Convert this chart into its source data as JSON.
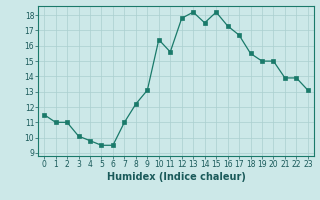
{
  "x": [
    0,
    1,
    2,
    3,
    4,
    5,
    6,
    7,
    8,
    9,
    10,
    11,
    12,
    13,
    14,
    15,
    16,
    17,
    18,
    19,
    20,
    21,
    22,
    23
  ],
  "y": [
    11.5,
    11.0,
    11.0,
    10.1,
    9.8,
    9.5,
    9.5,
    11.0,
    12.2,
    13.1,
    16.4,
    15.6,
    17.8,
    18.2,
    17.5,
    18.2,
    17.3,
    16.7,
    15.5,
    15.0,
    15.0,
    13.9,
    13.9,
    13.1
  ],
  "line_color": "#1a7a6a",
  "marker_color": "#1a7a6a",
  "bg_color": "#cce8e8",
  "grid_color": "#aacfcf",
  "xlabel": "Humidex (Indice chaleur)",
  "ylim": [
    8.8,
    18.6
  ],
  "xlim": [
    -0.5,
    23.5
  ],
  "yticks": [
    9,
    10,
    11,
    12,
    13,
    14,
    15,
    16,
    17,
    18
  ],
  "xticks": [
    0,
    1,
    2,
    3,
    4,
    5,
    6,
    7,
    8,
    9,
    10,
    11,
    12,
    13,
    14,
    15,
    16,
    17,
    18,
    19,
    20,
    21,
    22,
    23
  ],
  "tick_fontsize": 5.5,
  "xlabel_fontsize": 7.0
}
